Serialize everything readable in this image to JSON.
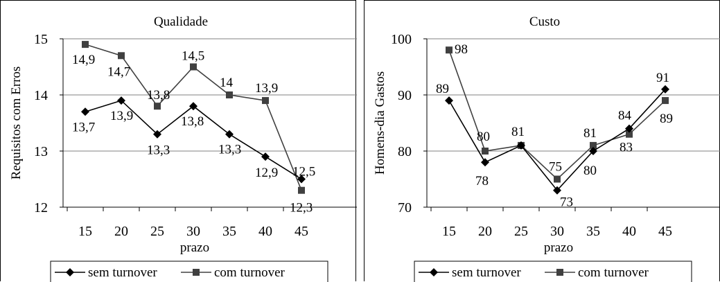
{
  "chart_data": [
    {
      "type": "line",
      "title": "Qualidade",
      "xlabel": "prazo",
      "ylabel": "Requisitos com Erros",
      "categories": [
        "15",
        "20",
        "25",
        "30",
        "35",
        "40",
        "45"
      ],
      "ylim": [
        12,
        15
      ],
      "yticks": [
        "12",
        "13",
        "14",
        "15"
      ],
      "grid": true,
      "legend_position": "bottom",
      "series": [
        {
          "name": "sem turnover",
          "marker": "diamond",
          "color": "#000000",
          "values": [
            13.7,
            13.9,
            13.3,
            13.8,
            13.3,
            12.9,
            12.5
          ],
          "labels": [
            "13,7",
            "13,9",
            "13,3",
            "13,8",
            "13,3",
            "12,9",
            "12,5"
          ]
        },
        {
          "name": "com turnover",
          "marker": "square",
          "color": "#404040",
          "values": [
            14.9,
            14.7,
            13.8,
            14.5,
            14.0,
            13.9,
            12.3
          ],
          "labels": [
            "14,9",
            "14,7",
            "13,8",
            "14,5",
            "14",
            "13,9",
            "12,3"
          ]
        }
      ]
    },
    {
      "type": "line",
      "title": "Custo",
      "xlabel": "prazo",
      "ylabel": "Homens-dia Gastos",
      "categories": [
        "15",
        "20",
        "25",
        "30",
        "35",
        "40",
        "45"
      ],
      "ylim": [
        70,
        100
      ],
      "yticks": [
        "70",
        "80",
        "90",
        "100"
      ],
      "grid": true,
      "legend_position": "bottom",
      "series": [
        {
          "name": "sem turnover",
          "marker": "diamond",
          "color": "#000000",
          "values": [
            89,
            78,
            81,
            73,
            80,
            84,
            91
          ],
          "labels": [
            "89",
            "78",
            "",
            "73",
            "80",
            "84",
            "91"
          ]
        },
        {
          "name": "com turnover",
          "marker": "square",
          "color": "#404040",
          "values": [
            98,
            80,
            81,
            75,
            81,
            83,
            89
          ],
          "labels": [
            "98",
            "80",
            "81",
            "75",
            "81",
            "83",
            "89"
          ]
        }
      ]
    }
  ]
}
